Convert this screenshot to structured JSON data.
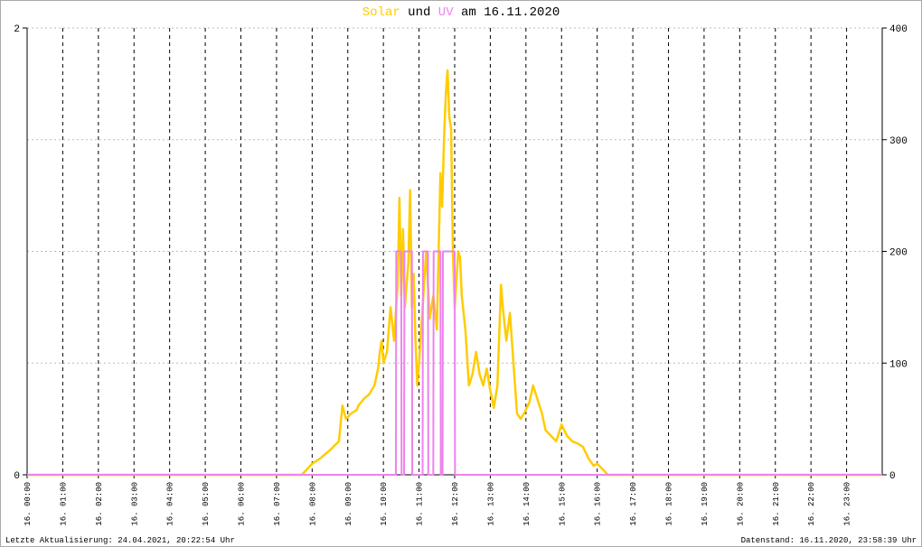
{
  "chart_data": {
    "type": "line",
    "title_middle": "und",
    "title_suffix": "am 16.11.2020",
    "footer_left": "Letzte Aktualisierung: 24.04.2021, 20:22:54 Uhr",
    "footer_right": "Datenstand: 16.11.2020, 23:58:39 Uhr",
    "xlim": [
      0,
      24
    ],
    "xticks": [
      {
        "value": 0,
        "label": "16. 00:00"
      },
      {
        "value": 1,
        "label": "16. 01:00"
      },
      {
        "value": 2,
        "label": "16. 02:00"
      },
      {
        "value": 3,
        "label": "16. 03:00"
      },
      {
        "value": 4,
        "label": "16. 04:00"
      },
      {
        "value": 5,
        "label": "16. 05:00"
      },
      {
        "value": 6,
        "label": "16. 06:00"
      },
      {
        "value": 7,
        "label": "16. 07:00"
      },
      {
        "value": 8,
        "label": "16. 08:00"
      },
      {
        "value": 9,
        "label": "16. 09:00"
      },
      {
        "value": 10,
        "label": "16. 10:00"
      },
      {
        "value": 11,
        "label": "16. 11:00"
      },
      {
        "value": 12,
        "label": "16. 12:00"
      },
      {
        "value": 13,
        "label": "16. 13:00"
      },
      {
        "value": 14,
        "label": "16. 14:00"
      },
      {
        "value": 15,
        "label": "16. 15:00"
      },
      {
        "value": 16,
        "label": "16. 16:00"
      },
      {
        "value": 17,
        "label": "16. 17:00"
      },
      {
        "value": 18,
        "label": "16. 18:00"
      },
      {
        "value": 19,
        "label": "16. 19:00"
      },
      {
        "value": 20,
        "label": "16. 20:00"
      },
      {
        "value": 21,
        "label": "16. 21:00"
      },
      {
        "value": 22,
        "label": "16. 22:00"
      },
      {
        "value": 23,
        "label": "16. 23:00"
      }
    ],
    "ylim": [
      0,
      2
    ],
    "yticks": [
      0,
      2
    ],
    "y2lim": [
      0,
      400
    ],
    "y2ticks": [
      0,
      100,
      200,
      300,
      400
    ],
    "grid": true,
    "series": [
      {
        "name": "Solar",
        "color": "#ffcc00",
        "axis": "y2",
        "x": [
          0,
          7.7,
          7.8,
          8.0,
          8.2,
          8.5,
          8.75,
          8.85,
          8.95,
          9.1,
          9.25,
          9.3,
          9.45,
          9.6,
          9.75,
          9.85,
          9.9,
          9.95,
          10.0,
          10.1,
          10.2,
          10.3,
          10.4,
          10.45,
          10.5,
          10.55,
          10.6,
          10.7,
          10.75,
          10.8,
          10.85,
          10.9,
          10.95,
          11.0,
          11.1,
          11.2,
          11.3,
          11.4,
          11.5,
          11.6,
          11.65,
          11.7,
          11.75,
          11.8,
          11.85,
          11.9,
          11.95,
          12.0,
          12.1,
          12.15,
          12.2,
          12.3,
          12.4,
          12.5,
          12.6,
          12.7,
          12.8,
          12.9,
          13.0,
          13.1,
          13.2,
          13.3,
          13.35,
          13.45,
          13.55,
          13.65,
          13.75,
          13.85,
          13.95,
          14.1,
          14.2,
          14.3,
          14.45,
          14.55,
          14.7,
          14.85,
          15.0,
          15.15,
          15.3,
          15.45,
          15.6,
          15.75,
          15.9,
          16.0,
          16.15,
          16.3,
          24
        ],
        "values": [
          0,
          0,
          3,
          10,
          14,
          22,
          30,
          62,
          50,
          55,
          58,
          62,
          68,
          72,
          80,
          95,
          110,
          120,
          100,
          110,
          150,
          120,
          170,
          248,
          160,
          220,
          150,
          190,
          255,
          150,
          180,
          120,
          80,
          100,
          150,
          200,
          140,
          160,
          130,
          270,
          240,
          300,
          340,
          362,
          320,
          310,
          200,
          150,
          200,
          195,
          160,
          130,
          80,
          90,
          110,
          90,
          80,
          95,
          75,
          60,
          80,
          170,
          150,
          120,
          145,
          100,
          55,
          50,
          55,
          65,
          80,
          70,
          55,
          40,
          35,
          30,
          45,
          35,
          30,
          28,
          25,
          15,
          8,
          10,
          5,
          0,
          0
        ]
      },
      {
        "name": "UV",
        "color": "#ee82ee",
        "x": [
          0,
          10.35,
          10.36,
          10.5,
          10.51,
          10.58,
          10.59,
          10.8,
          10.81,
          11.1,
          11.11,
          11.25,
          11.26,
          11.4,
          11.41,
          11.6,
          11.61,
          11.66,
          11.67,
          12.0,
          12.01,
          24
        ],
        "values": [
          0,
          0,
          1,
          1,
          0,
          0,
          1,
          1,
          0,
          0,
          1,
          1,
          0,
          0,
          1,
          1,
          0,
          0,
          1,
          1,
          0,
          0
        ]
      }
    ]
  }
}
